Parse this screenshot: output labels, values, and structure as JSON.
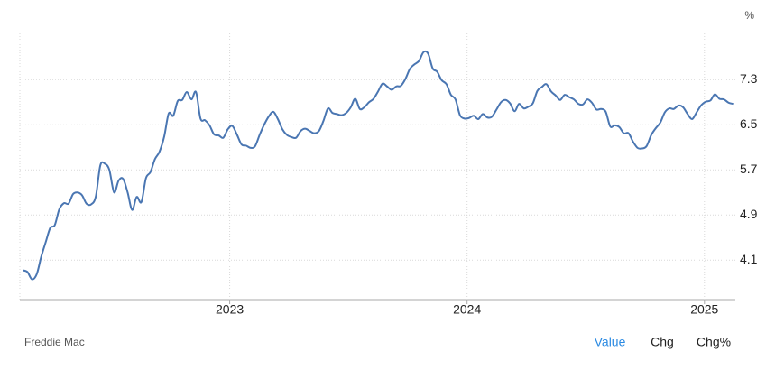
{
  "chart_data": {
    "type": "line",
    "y_unit": "%",
    "color": "#4a76b2",
    "grid": true,
    "xlim": [
      2022.116,
      2025.13
    ],
    "ylim": [
      3.4,
      8.12
    ],
    "xticks": [
      2023,
      2024,
      2025
    ],
    "yticks": [
      4.1,
      4.9,
      5.7,
      6.5,
      7.3
    ],
    "x": [
      2022.129,
      2022.148,
      2022.167,
      2022.187,
      2022.206,
      2022.225,
      2022.244,
      2022.263,
      2022.282,
      2022.302,
      2022.321,
      2022.34,
      2022.359,
      2022.378,
      2022.397,
      2022.417,
      2022.436,
      2022.455,
      2022.474,
      2022.493,
      2022.513,
      2022.532,
      2022.551,
      2022.57,
      2022.589,
      2022.608,
      2022.628,
      2022.647,
      2022.666,
      2022.685,
      2022.704,
      2022.724,
      2022.743,
      2022.762,
      2022.781,
      2022.8,
      2022.819,
      2022.839,
      2022.858,
      2022.877,
      2022.896,
      2022.915,
      2022.934,
      2022.954,
      2022.973,
      2022.992,
      2023.011,
      2023.03,
      2023.05,
      2023.069,
      2023.088,
      2023.107,
      2023.126,
      2023.145,
      2023.165,
      2023.184,
      2023.203,
      2023.222,
      2023.241,
      2023.261,
      2023.28,
      2023.299,
      2023.318,
      2023.337,
      2023.356,
      2023.376,
      2023.395,
      2023.414,
      2023.433,
      2023.452,
      2023.471,
      2023.491,
      2023.51,
      2023.529,
      2023.548,
      2023.567,
      2023.587,
      2023.606,
      2023.625,
      2023.644,
      2023.663,
      2023.682,
      2023.702,
      2023.721,
      2023.74,
      2023.759,
      2023.778,
      2023.797,
      2023.817,
      2023.836,
      2023.855,
      2023.874,
      2023.893,
      2023.913,
      2023.932,
      2023.951,
      2023.97,
      2023.989,
      2024.008,
      2024.028,
      2024.047,
      2024.066,
      2024.085,
      2024.104,
      2024.124,
      2024.143,
      2024.162,
      2024.181,
      2024.2,
      2024.219,
      2024.239,
      2024.258,
      2024.277,
      2024.296,
      2024.315,
      2024.334,
      2024.354,
      2024.373,
      2024.392,
      2024.411,
      2024.43,
      2024.45,
      2024.469,
      2024.488,
      2024.507,
      2024.526,
      2024.545,
      2024.565,
      2024.584,
      2024.603,
      2024.622,
      2024.641,
      2024.66,
      2024.68,
      2024.699,
      2024.718,
      2024.737,
      2024.756,
      2024.776,
      2024.795,
      2024.814,
      2024.833,
      2024.852,
      2024.871,
      2024.891,
      2024.91,
      2024.929,
      2024.948,
      2024.967,
      2024.987,
      2025.006,
      2025.025,
      2025.044,
      2025.063,
      2025.082,
      2025.102,
      2025.121
    ],
    "values": [
      3.92,
      3.89,
      3.76,
      3.85,
      4.16,
      4.42,
      4.67,
      4.72,
      5.0,
      5.11,
      5.1,
      5.27,
      5.3,
      5.25,
      5.1,
      5.09,
      5.23,
      5.78,
      5.81,
      5.7,
      5.3,
      5.51,
      5.54,
      5.3,
      4.99,
      5.22,
      5.13,
      5.55,
      5.66,
      5.89,
      6.02,
      6.29,
      6.7,
      6.66,
      6.92,
      6.94,
      7.08,
      6.95,
      7.08,
      6.61,
      6.58,
      6.49,
      6.33,
      6.31,
      6.27,
      6.42,
      6.48,
      6.33,
      6.15,
      6.13,
      6.09,
      6.12,
      6.32,
      6.5,
      6.65,
      6.73,
      6.6,
      6.42,
      6.32,
      6.28,
      6.27,
      6.39,
      6.43,
      6.39,
      6.35,
      6.39,
      6.57,
      6.79,
      6.71,
      6.69,
      6.67,
      6.71,
      6.81,
      6.96,
      6.78,
      6.81,
      6.9,
      6.96,
      7.09,
      7.23,
      7.18,
      7.12,
      7.18,
      7.19,
      7.31,
      7.49,
      7.57,
      7.63,
      7.79,
      7.76,
      7.5,
      7.44,
      7.29,
      7.22,
      7.03,
      6.95,
      6.67,
      6.61,
      6.62,
      6.66,
      6.6,
      6.69,
      6.63,
      6.64,
      6.77,
      6.9,
      6.94,
      6.88,
      6.74,
      6.87,
      6.79,
      6.82,
      6.88,
      7.1,
      7.17,
      7.22,
      7.09,
      7.02,
      6.94,
      7.03,
      6.99,
      6.95,
      6.87,
      6.86,
      6.95,
      6.89,
      6.77,
      6.78,
      6.73,
      6.47,
      6.49,
      6.46,
      6.35,
      6.35,
      6.2,
      6.09,
      6.08,
      6.12,
      6.32,
      6.44,
      6.54,
      6.72,
      6.79,
      6.78,
      6.84,
      6.81,
      6.69,
      6.6,
      6.72,
      6.85,
      6.91,
      6.93,
      7.04,
      6.96,
      6.95,
      6.89,
      6.87
    ]
  },
  "source": "Freddie Mac",
  "tabs": [
    "Value",
    "Chg",
    "Chg%"
  ]
}
